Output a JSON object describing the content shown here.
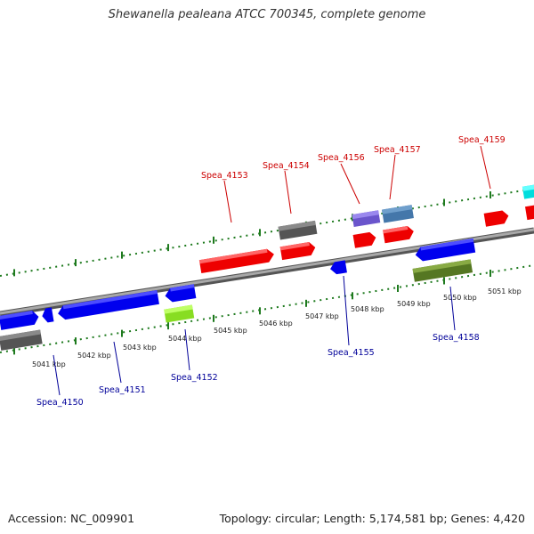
{
  "title": "Shewanella pealeana ATCC 700345, complete genome",
  "footer": {
    "accession": "Accession: NC_009901",
    "summary": "Topology: circular; Length: 5,174,581 bp; Genes: 4,420"
  },
  "colors": {
    "forward_label": "#cc0000",
    "reverse_label": "#000099",
    "tick": "#1e7a1e",
    "backbone": "#8c8c8c"
  },
  "kbp_labels": [
    "5041 kbp",
    "5042 kbp",
    "5043 kbp",
    "5044 kbp",
    "5045 kbp",
    "5046 kbp",
    "5047 kbp",
    "5048 kbp",
    "5049 kbp",
    "5050 kbp",
    "5051 kbp"
  ],
  "forward_gene_labels": [
    "Spea_4153",
    "Spea_4154",
    "Spea_4156",
    "Spea_4157",
    "Spea_4159"
  ],
  "reverse_gene_labels": [
    "Spea_4150",
    "Spea_4151",
    "Spea_4152",
    "Spea_4155",
    "Spea_4158"
  ]
}
